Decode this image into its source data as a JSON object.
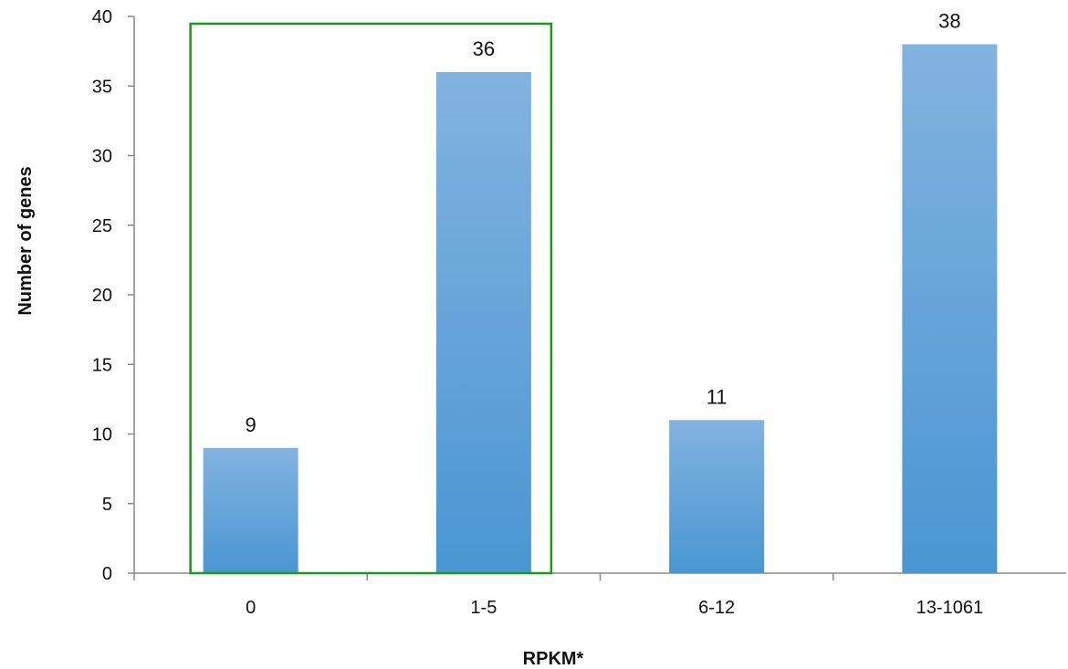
{
  "chart_data": {
    "type": "bar",
    "categories": [
      "0",
      "1-5",
      "6-12",
      "13-1061"
    ],
    "values": [
      9,
      36,
      11,
      38
    ],
    "data_labels": [
      "9",
      "36",
      "11",
      "38"
    ],
    "title": "",
    "xlabel": "RPKM*",
    "ylabel": "Number of  genes",
    "ylim": [
      0,
      40
    ],
    "yticks": [
      "0",
      "5",
      "10",
      "15",
      "20",
      "25",
      "30",
      "35",
      "40"
    ],
    "grid": false,
    "legend": "none",
    "highlight": {
      "categories": [
        "0",
        "1-5"
      ],
      "color": "#1a9a1a"
    },
    "colors": {
      "bar_top": "#82b3e0",
      "bar_bottom": "#4a96d2",
      "axis": "#888888"
    }
  }
}
